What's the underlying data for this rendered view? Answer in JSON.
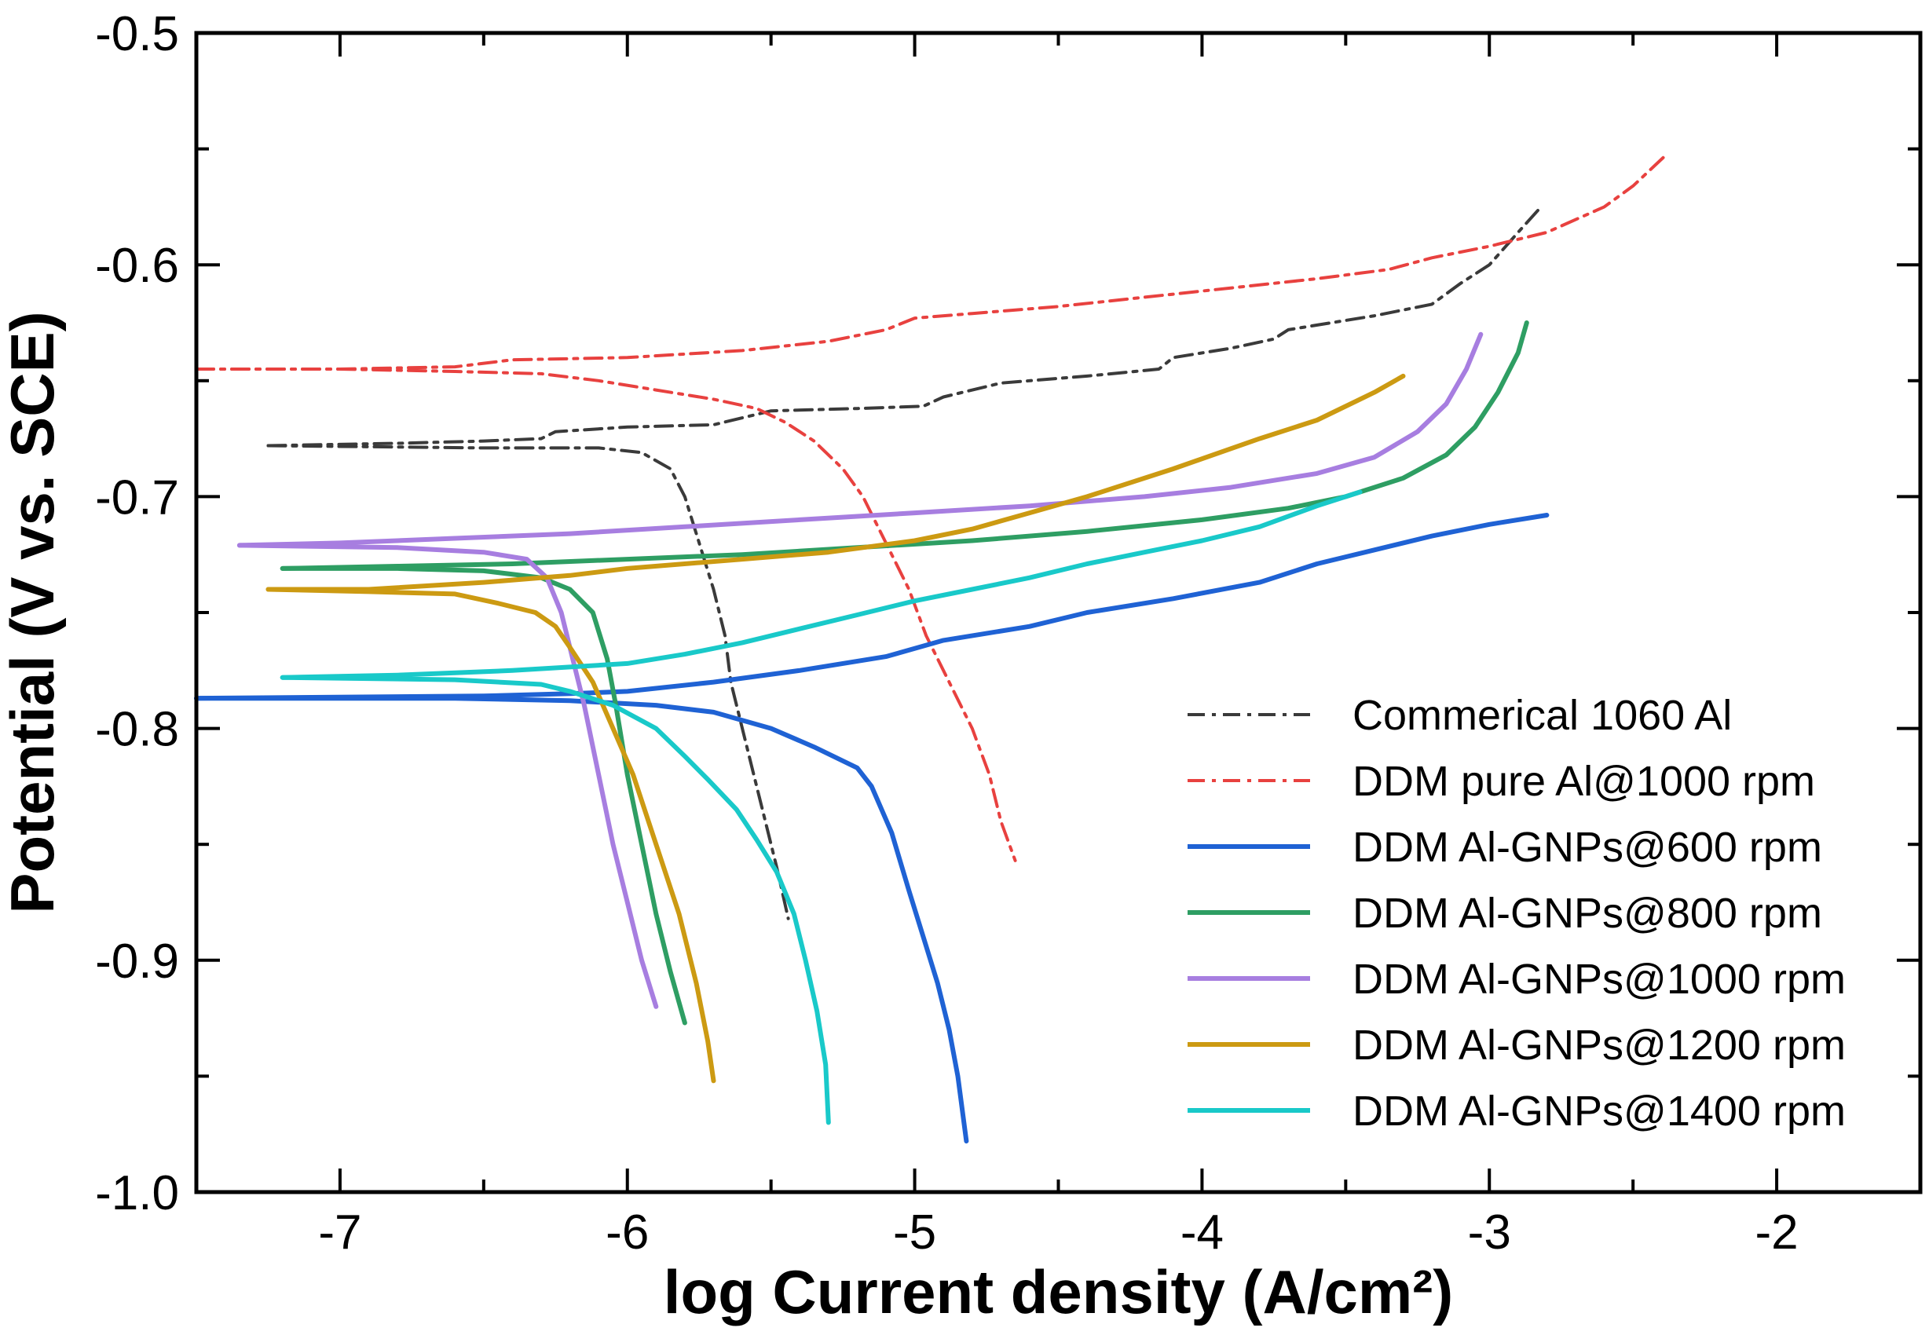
{
  "chart_data": {
    "type": "line",
    "title": "",
    "xlabel": "log Current density (A/cm²)",
    "ylabel": "Potential (V vs. SCE)",
    "xlim": [
      -7.5,
      -1.5
    ],
    "ylim": [
      -1.0,
      -0.5
    ],
    "grid": false,
    "legend_position": "bottom-right",
    "x_ticks": [
      "-7",
      "-6",
      "-5",
      "-4",
      "-3",
      "-2"
    ],
    "x_tick_values": [
      -7,
      -6,
      -5,
      -4,
      -3,
      -2
    ],
    "y_ticks": [
      "-0.5",
      "-0.6",
      "-0.7",
      "-0.8",
      "-0.9",
      "-1.0"
    ],
    "y_tick_values": [
      -0.5,
      -0.6,
      -0.7,
      -0.8,
      -0.9,
      -1.0
    ],
    "series": [
      {
        "name": "Commerical 1060 Al",
        "color": "#3a3a3a",
        "style": "dashdot",
        "branches": [
          [
            [
              -7.25,
              -0.678
            ],
            [
              -6.8,
              -0.677
            ],
            [
              -6.5,
              -0.676
            ],
            [
              -6.3,
              -0.675
            ],
            [
              -6.25,
              -0.672
            ],
            [
              -6.0,
              -0.67
            ],
            [
              -5.7,
              -0.669
            ],
            [
              -5.5,
              -0.663
            ],
            [
              -5.2,
              -0.662
            ],
            [
              -4.97,
              -0.661
            ],
            [
              -4.9,
              -0.657
            ],
            [
              -4.7,
              -0.651
            ],
            [
              -4.4,
              -0.648
            ],
            [
              -4.15,
              -0.645
            ],
            [
              -4.1,
              -0.64
            ],
            [
              -3.9,
              -0.636
            ],
            [
              -3.75,
              -0.632
            ],
            [
              -3.7,
              -0.628
            ],
            [
              -3.55,
              -0.625
            ],
            [
              -3.4,
              -0.622
            ],
            [
              -3.2,
              -0.617
            ],
            [
              -3.1,
              -0.608
            ],
            [
              -3.0,
              -0.6
            ],
            [
              -2.9,
              -0.586
            ],
            [
              -2.82,
              -0.575
            ]
          ],
          [
            [
              -7.25,
              -0.678
            ],
            [
              -6.5,
              -0.679
            ],
            [
              -6.1,
              -0.679
            ],
            [
              -5.95,
              -0.681
            ],
            [
              -5.85,
              -0.688
            ],
            [
              -5.8,
              -0.7
            ],
            [
              -5.75,
              -0.72
            ],
            [
              -5.7,
              -0.74
            ],
            [
              -5.66,
              -0.76
            ],
            [
              -5.64,
              -0.78
            ],
            [
              -5.6,
              -0.8
            ],
            [
              -5.56,
              -0.82
            ],
            [
              -5.52,
              -0.84
            ],
            [
              -5.48,
              -0.86
            ],
            [
              -5.44,
              -0.882
            ]
          ]
        ]
      },
      {
        "name": "DDM pure Al@1000 rpm",
        "color": "#e8413f",
        "style": "dashdot",
        "branches": [
          [
            [
              -7.5,
              -0.645
            ],
            [
              -7.0,
              -0.645
            ],
            [
              -6.6,
              -0.644
            ],
            [
              -6.4,
              -0.641
            ],
            [
              -6.0,
              -0.64
            ],
            [
              -5.6,
              -0.637
            ],
            [
              -5.3,
              -0.633
            ],
            [
              -5.1,
              -0.628
            ],
            [
              -5.0,
              -0.623
            ],
            [
              -4.8,
              -0.621
            ],
            [
              -4.5,
              -0.618
            ],
            [
              -4.2,
              -0.614
            ],
            [
              -3.9,
              -0.61
            ],
            [
              -3.6,
              -0.606
            ],
            [
              -3.35,
              -0.602
            ],
            [
              -3.2,
              -0.597
            ],
            [
              -3.0,
              -0.592
            ],
            [
              -2.8,
              -0.586
            ],
            [
              -2.6,
              -0.575
            ],
            [
              -2.5,
              -0.566
            ],
            [
              -2.38,
              -0.552
            ]
          ],
          [
            [
              -7.5,
              -0.645
            ],
            [
              -7.0,
              -0.645
            ],
            [
              -6.6,
              -0.646
            ],
            [
              -6.3,
              -0.647
            ],
            [
              -6.1,
              -0.65
            ],
            [
              -5.9,
              -0.654
            ],
            [
              -5.7,
              -0.658
            ],
            [
              -5.55,
              -0.662
            ],
            [
              -5.45,
              -0.668
            ],
            [
              -5.35,
              -0.676
            ],
            [
              -5.25,
              -0.688
            ],
            [
              -5.18,
              -0.7
            ],
            [
              -5.1,
              -0.72
            ],
            [
              -5.02,
              -0.74
            ],
            [
              -4.96,
              -0.76
            ],
            [
              -4.88,
              -0.78
            ],
            [
              -4.8,
              -0.8
            ],
            [
              -4.74,
              -0.82
            ],
            [
              -4.7,
              -0.84
            ],
            [
              -4.65,
              -0.857
            ]
          ]
        ]
      },
      {
        "name": "DDM Al-GNPs@600 rpm",
        "color": "#1f62d4",
        "style": "solid",
        "branches": [
          [
            [
              -7.5,
              -0.787
            ],
            [
              -6.5,
              -0.786
            ],
            [
              -6.2,
              -0.785
            ],
            [
              -6.0,
              -0.784
            ],
            [
              -5.7,
              -0.78
            ],
            [
              -5.4,
              -0.775
            ],
            [
              -5.1,
              -0.769
            ],
            [
              -4.9,
              -0.762
            ],
            [
              -4.6,
              -0.756
            ],
            [
              -4.4,
              -0.75
            ],
            [
              -4.1,
              -0.744
            ],
            [
              -3.8,
              -0.737
            ],
            [
              -3.6,
              -0.729
            ],
            [
              -3.4,
              -0.723
            ],
            [
              -3.2,
              -0.717
            ],
            [
              -3.0,
              -0.712
            ],
            [
              -2.8,
              -0.708
            ]
          ],
          [
            [
              -7.5,
              -0.787
            ],
            [
              -6.6,
              -0.787
            ],
            [
              -6.2,
              -0.788
            ],
            [
              -5.9,
              -0.79
            ],
            [
              -5.7,
              -0.793
            ],
            [
              -5.5,
              -0.8
            ],
            [
              -5.35,
              -0.808
            ],
            [
              -5.2,
              -0.817
            ],
            [
              -5.15,
              -0.825
            ],
            [
              -5.08,
              -0.845
            ],
            [
              -5.02,
              -0.87
            ],
            [
              -4.97,
              -0.89
            ],
            [
              -4.92,
              -0.91
            ],
            [
              -4.88,
              -0.93
            ],
            [
              -4.85,
              -0.95
            ],
            [
              -4.82,
              -0.978
            ]
          ]
        ]
      },
      {
        "name": "DDM Al-GNPs@800 rpm",
        "color": "#2e9e63",
        "style": "solid",
        "branches": [
          [
            [
              -7.2,
              -0.731
            ],
            [
              -6.8,
              -0.73
            ],
            [
              -6.4,
              -0.729
            ],
            [
              -6.0,
              -0.727
            ],
            [
              -5.6,
              -0.725
            ],
            [
              -5.2,
              -0.722
            ],
            [
              -4.8,
              -0.719
            ],
            [
              -4.4,
              -0.715
            ],
            [
              -4.0,
              -0.71
            ],
            [
              -3.7,
              -0.705
            ],
            [
              -3.5,
              -0.7
            ],
            [
              -3.3,
              -0.692
            ],
            [
              -3.15,
              -0.682
            ],
            [
              -3.05,
              -0.67
            ],
            [
              -2.97,
              -0.655
            ],
            [
              -2.9,
              -0.638
            ],
            [
              -2.87,
              -0.625
            ]
          ],
          [
            [
              -7.2,
              -0.731
            ],
            [
              -6.8,
              -0.731
            ],
            [
              -6.5,
              -0.732
            ],
            [
              -6.3,
              -0.735
            ],
            [
              -6.2,
              -0.74
            ],
            [
              -6.12,
              -0.75
            ],
            [
              -6.07,
              -0.77
            ],
            [
              -6.04,
              -0.79
            ],
            [
              -6.0,
              -0.82
            ],
            [
              -5.95,
              -0.85
            ],
            [
              -5.9,
              -0.88
            ],
            [
              -5.85,
              -0.905
            ],
            [
              -5.8,
              -0.927
            ]
          ]
        ]
      },
      {
        "name": "DDM Al-GNPs@1000 rpm",
        "color": "#a77ee0",
        "style": "solid",
        "branches": [
          [
            [
              -7.35,
              -0.721
            ],
            [
              -7.0,
              -0.72
            ],
            [
              -6.6,
              -0.718
            ],
            [
              -6.2,
              -0.716
            ],
            [
              -5.8,
              -0.713
            ],
            [
              -5.4,
              -0.71
            ],
            [
              -5.0,
              -0.707
            ],
            [
              -4.6,
              -0.704
            ],
            [
              -4.2,
              -0.7
            ],
            [
              -3.9,
              -0.696
            ],
            [
              -3.6,
              -0.69
            ],
            [
              -3.4,
              -0.683
            ],
            [
              -3.25,
              -0.672
            ],
            [
              -3.15,
              -0.66
            ],
            [
              -3.08,
              -0.645
            ],
            [
              -3.03,
              -0.63
            ]
          ],
          [
            [
              -7.35,
              -0.721
            ],
            [
              -6.8,
              -0.722
            ],
            [
              -6.5,
              -0.724
            ],
            [
              -6.35,
              -0.727
            ],
            [
              -6.28,
              -0.735
            ],
            [
              -6.23,
              -0.75
            ],
            [
              -6.19,
              -0.77
            ],
            [
              -6.15,
              -0.79
            ],
            [
              -6.1,
              -0.82
            ],
            [
              -6.05,
              -0.85
            ],
            [
              -6.0,
              -0.875
            ],
            [
              -5.95,
              -0.9
            ],
            [
              -5.9,
              -0.92
            ]
          ]
        ]
      },
      {
        "name": "DDM Al-GNPs@1200 rpm",
        "color": "#cc9a12",
        "style": "solid",
        "branches": [
          [
            [
              -7.25,
              -0.74
            ],
            [
              -6.9,
              -0.74
            ],
            [
              -6.5,
              -0.737
            ],
            [
              -6.2,
              -0.734
            ],
            [
              -6.0,
              -0.731
            ],
            [
              -5.6,
              -0.727
            ],
            [
              -5.3,
              -0.724
            ],
            [
              -5.0,
              -0.719
            ],
            [
              -4.8,
              -0.714
            ],
            [
              -4.6,
              -0.707
            ],
            [
              -4.4,
              -0.7
            ],
            [
              -4.1,
              -0.688
            ],
            [
              -3.8,
              -0.675
            ],
            [
              -3.6,
              -0.667
            ],
            [
              -3.4,
              -0.655
            ],
            [
              -3.3,
              -0.648
            ]
          ],
          [
            [
              -7.25,
              -0.74
            ],
            [
              -6.9,
              -0.741
            ],
            [
              -6.6,
              -0.742
            ],
            [
              -6.45,
              -0.746
            ],
            [
              -6.32,
              -0.75
            ],
            [
              -6.25,
              -0.756
            ],
            [
              -6.2,
              -0.765
            ],
            [
              -6.12,
              -0.78
            ],
            [
              -6.05,
              -0.8
            ],
            [
              -5.98,
              -0.82
            ],
            [
              -5.9,
              -0.85
            ],
            [
              -5.82,
              -0.88
            ],
            [
              -5.76,
              -0.91
            ],
            [
              -5.72,
              -0.935
            ],
            [
              -5.7,
              -0.952
            ]
          ]
        ]
      },
      {
        "name": "DDM Al-GNPs@1400 rpm",
        "color": "#19c9c9",
        "style": "solid",
        "branches": [
          [
            [
              -7.2,
              -0.778
            ],
            [
              -6.8,
              -0.777
            ],
            [
              -6.4,
              -0.775
            ],
            [
              -6.0,
              -0.772
            ],
            [
              -5.8,
              -0.768
            ],
            [
              -5.6,
              -0.763
            ],
            [
              -5.4,
              -0.757
            ],
            [
              -5.2,
              -0.751
            ],
            [
              -5.0,
              -0.745
            ],
            [
              -4.8,
              -0.74
            ],
            [
              -4.6,
              -0.735
            ],
            [
              -4.4,
              -0.729
            ],
            [
              -4.2,
              -0.724
            ],
            [
              -4.0,
              -0.719
            ],
            [
              -3.8,
              -0.713
            ],
            [
              -3.6,
              -0.704
            ],
            [
              -3.45,
              -0.698
            ]
          ],
          [
            [
              -7.2,
              -0.778
            ],
            [
              -6.6,
              -0.779
            ],
            [
              -6.3,
              -0.781
            ],
            [
              -6.2,
              -0.784
            ],
            [
              -6.05,
              -0.79
            ],
            [
              -5.9,
              -0.8
            ],
            [
              -5.8,
              -0.812
            ],
            [
              -5.72,
              -0.822
            ],
            [
              -5.62,
              -0.835
            ],
            [
              -5.55,
              -0.848
            ],
            [
              -5.48,
              -0.862
            ],
            [
              -5.42,
              -0.88
            ],
            [
              -5.38,
              -0.9
            ],
            [
              -5.34,
              -0.922
            ],
            [
              -5.31,
              -0.945
            ],
            [
              -5.3,
              -0.97
            ]
          ]
        ]
      }
    ]
  }
}
